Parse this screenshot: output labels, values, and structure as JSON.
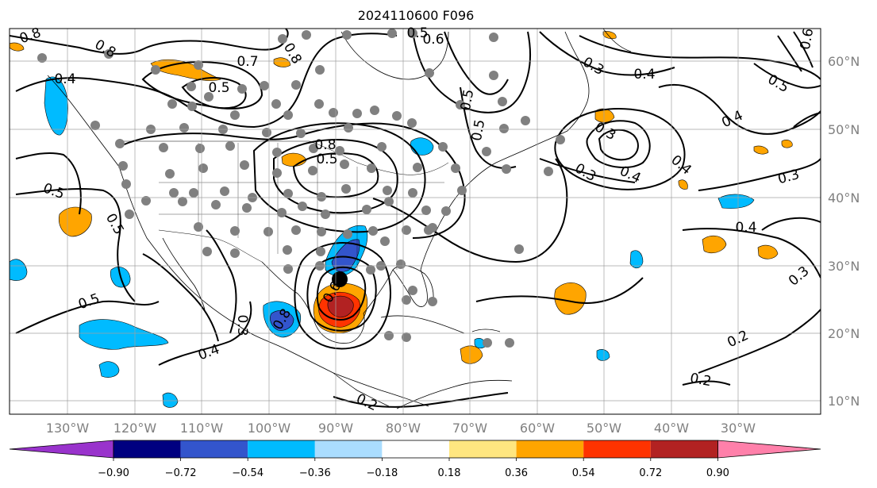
{
  "title": "2024110600 F096",
  "map": {
    "lon_ticks": [
      "130°W",
      "120°W",
      "110°W",
      "100°W",
      "90°W",
      "80°W",
      "70°W",
      "60°W",
      "50°W",
      "40°W",
      "30°W"
    ],
    "lat_ticks": [
      "60°N",
      "50°N",
      "40°N",
      "30°N",
      "20°N",
      "10°N"
    ],
    "contour_labels": [
      "0.8",
      "0.8",
      "0.7",
      "0.5",
      "0.4",
      "0.8",
      "0.5",
      "0.6",
      "0.3",
      "0.4",
      "0.5",
      "0.5",
      "0.3",
      "0.5",
      "0.4",
      "0.3",
      "0.4",
      "0.3",
      "0.4",
      "0.3",
      "0.2",
      "0.2",
      "0.5",
      "0.5",
      "0.5",
      "0.4",
      "0.3",
      "0.8",
      "0.6",
      "0.8",
      "0.5",
      "0.6",
      "0.4",
      "0.2"
    ]
  },
  "colorbar": {
    "ticks": [
      "−0.90",
      "−0.72",
      "−0.54",
      "−0.36",
      "−0.18",
      "0.18",
      "0.36",
      "0.54",
      "0.72",
      "0.90"
    ],
    "colors": [
      "#9933cc",
      "#000080",
      "#3355cc",
      "#00bbff",
      "#aaddff",
      "#ffffff",
      "#ffe680",
      "#ffa500",
      "#ff3300",
      "#b22222",
      "#ff80aa"
    ]
  },
  "colors": {
    "shade_orange": "#ffa500",
    "shade_red": "#ff3300",
    "shade_darkred": "#b22222",
    "shade_cyan": "#00bbff",
    "shade_blue": "#3355cc",
    "station": "#808080",
    "grid": "#a0a0a0"
  }
}
